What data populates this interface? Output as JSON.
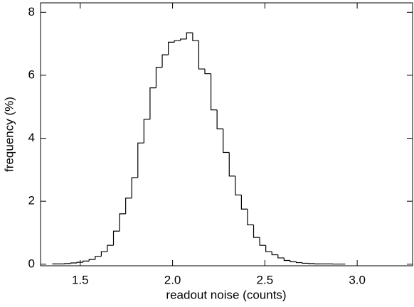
{
  "chart_data": {
    "type": "histogram",
    "xlabel": "readout noise (counts)",
    "ylabel": "frequency (%)",
    "bins": [
      1.35,
      1.383,
      1.416,
      1.449,
      1.482,
      1.515,
      1.548,
      1.581,
      1.614,
      1.647,
      1.68,
      1.713,
      1.746,
      1.779,
      1.812,
      1.845,
      1.878,
      1.911,
      1.944,
      1.977,
      2.01,
      2.043,
      2.076,
      2.109,
      2.142,
      2.175,
      2.208,
      2.241,
      2.274,
      2.307,
      2.34,
      2.373,
      2.406,
      2.439,
      2.472,
      2.505,
      2.538,
      2.571,
      2.604,
      2.637,
      2.67,
      2.703,
      2.736,
      2.769,
      2.802,
      2.835,
      2.868,
      2.901,
      2.934
    ],
    "values": [
      0.01,
      0.01,
      0.02,
      0.04,
      0.06,
      0.1,
      0.15,
      0.25,
      0.4,
      0.6,
      1.05,
      1.6,
      2.1,
      2.75,
      3.85,
      4.6,
      5.6,
      6.25,
      6.65,
      7.05,
      7.1,
      7.15,
      7.35,
      7.1,
      6.2,
      6.05,
      4.9,
      4.3,
      3.55,
      2.8,
      2.2,
      1.75,
      1.25,
      0.85,
      0.6,
      0.4,
      0.3,
      0.2,
      0.12,
      0.08,
      0.05,
      0.03,
      0.02,
      0.01,
      0.01,
      0.01,
      0.005,
      0.005
    ],
    "color": "#000000",
    "xlim": [
      1.285,
      3.3
    ],
    "ylim": [
      -0.05,
      8.3
    ],
    "xticks": [
      1.5,
      {
        "value": 2,
        "label": "2.0"
      },
      2.5,
      {
        "value": 3,
        "label": "3.0"
      }
    ],
    "yticks": [
      0,
      2,
      4,
      6,
      8
    ]
  }
}
